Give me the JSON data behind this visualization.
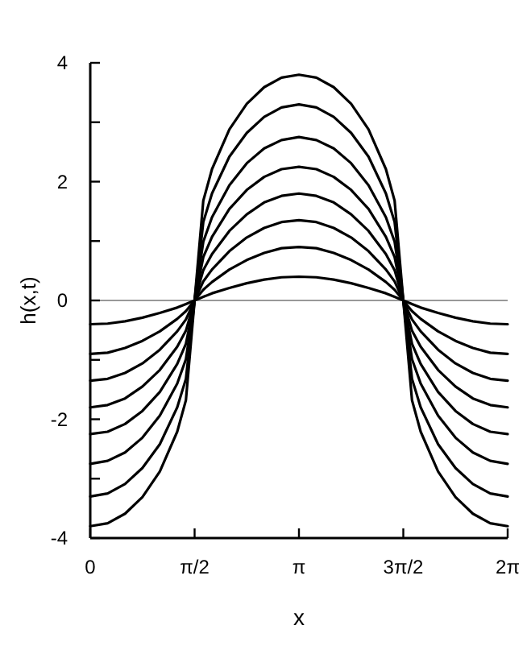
{
  "chart_data": {
    "type": "line",
    "xlabel": "x",
    "ylabel": "h(x,t)",
    "x": [
      0,
      0.2618,
      0.5236,
      0.7854,
      1.0472,
      1.309,
      1.4399,
      1.5708,
      1.7017,
      1.8326,
      2.0944,
      2.3562,
      2.618,
      2.8798,
      3.1416,
      3.4034,
      3.6652,
      3.927,
      4.1888,
      4.4506,
      4.5815,
      4.7124,
      4.8433,
      4.9742,
      5.236,
      5.4978,
      5.7596,
      6.0214,
      6.2832
    ],
    "xlim": [
      0,
      6.2832
    ],
    "xticks": [
      0,
      {
        "value": 1.5708,
        "label": "π/2"
      },
      {
        "value": 3.1416,
        "label": "π"
      },
      {
        "value": 4.7124,
        "label": "3π/2"
      },
      {
        "value": 6.2832,
        "label": "2π"
      }
    ],
    "ylim": [
      -4,
      4
    ],
    "yticks": [
      -4,
      {
        "value": -3,
        "label": null
      },
      -2,
      {
        "value": -1,
        "label": null
      },
      0,
      {
        "value": 1,
        "label": null
      },
      2,
      {
        "value": 3,
        "label": null
      },
      4
    ],
    "ref_lines": [
      {
        "axis": "y",
        "value": 0,
        "color": "#999999"
      }
    ],
    "series": [
      {
        "color": "#000000",
        "values": [
          -0.4,
          -0.39,
          -0.35,
          -0.29,
          -0.21,
          -0.12,
          -0.06,
          0,
          0.06,
          0.12,
          0.21,
          0.29,
          0.35,
          0.39,
          0.4,
          0.39,
          0.35,
          0.29,
          0.21,
          0.12,
          0.06,
          0,
          -0.06,
          -0.12,
          -0.21,
          -0.29,
          -0.35,
          -0.39,
          -0.4
        ]
      },
      {
        "color": "#000000",
        "values": [
          -0.9,
          -0.88,
          -0.8,
          -0.68,
          -0.52,
          -0.31,
          -0.18,
          0,
          0.18,
          0.31,
          0.52,
          0.68,
          0.8,
          0.88,
          0.9,
          0.88,
          0.8,
          0.68,
          0.52,
          0.31,
          0.18,
          0,
          -0.18,
          -0.31,
          -0.52,
          -0.68,
          -0.8,
          -0.88,
          -0.9
        ]
      },
      {
        "color": "#000000",
        "values": [
          -1.35,
          -1.32,
          -1.22,
          -1.06,
          -0.83,
          -0.52,
          -0.32,
          0,
          0.32,
          0.52,
          0.83,
          1.06,
          1.22,
          1.32,
          1.35,
          1.32,
          1.22,
          1.06,
          0.83,
          0.52,
          0.32,
          0,
          -0.32,
          -0.52,
          -0.83,
          -1.06,
          -1.22,
          -1.32,
          -1.35
        ]
      },
      {
        "color": "#000000",
        "values": [
          -1.8,
          -1.76,
          -1.65,
          -1.45,
          -1.17,
          -0.78,
          -0.51,
          0,
          0.51,
          0.78,
          1.17,
          1.45,
          1.65,
          1.76,
          1.8,
          1.76,
          1.65,
          1.45,
          1.17,
          0.78,
          0.51,
          0,
          -0.51,
          -0.78,
          -1.17,
          -1.45,
          -1.65,
          -1.76,
          -1.8
        ]
      },
      {
        "color": "#000000",
        "values": [
          -2.25,
          -2.21,
          -2.08,
          -1.86,
          -1.54,
          -1.07,
          -0.73,
          0,
          0.73,
          1.07,
          1.54,
          1.86,
          2.08,
          2.21,
          2.25,
          2.21,
          2.08,
          1.86,
          1.54,
          1.07,
          0.73,
          0,
          -0.73,
          -1.07,
          -1.54,
          -1.86,
          -2.08,
          -2.21,
          -2.25
        ]
      },
      {
        "color": "#000000",
        "values": [
          -2.75,
          -2.7,
          -2.56,
          -2.31,
          -1.94,
          -1.4,
          -0.99,
          0,
          0.99,
          1.4,
          1.94,
          2.31,
          2.56,
          2.7,
          2.75,
          2.7,
          2.56,
          2.31,
          1.94,
          1.4,
          0.99,
          0,
          -0.99,
          -1.4,
          -1.94,
          -2.31,
          -2.56,
          -2.7,
          -2.75
        ]
      },
      {
        "color": "#000000",
        "values": [
          -3.3,
          -3.25,
          -3.09,
          -2.82,
          -2.42,
          -1.8,
          -1.32,
          0,
          1.32,
          1.8,
          2.42,
          2.82,
          3.09,
          3.25,
          3.3,
          3.25,
          3.09,
          2.82,
          2.42,
          1.8,
          1.32,
          0,
          -1.32,
          -1.8,
          -2.42,
          -2.82,
          -3.09,
          -3.25,
          -3.3
        ]
      },
      {
        "color": "#000000",
        "values": [
          -3.8,
          -3.75,
          -3.59,
          -3.31,
          -2.88,
          -2.21,
          -1.68,
          0,
          1.68,
          2.21,
          2.88,
          3.31,
          3.59,
          3.75,
          3.8,
          3.75,
          3.59,
          3.31,
          2.88,
          2.21,
          1.68,
          0,
          -1.68,
          -2.21,
          -2.88,
          -3.31,
          -3.59,
          -3.75,
          -3.8
        ]
      }
    ]
  }
}
